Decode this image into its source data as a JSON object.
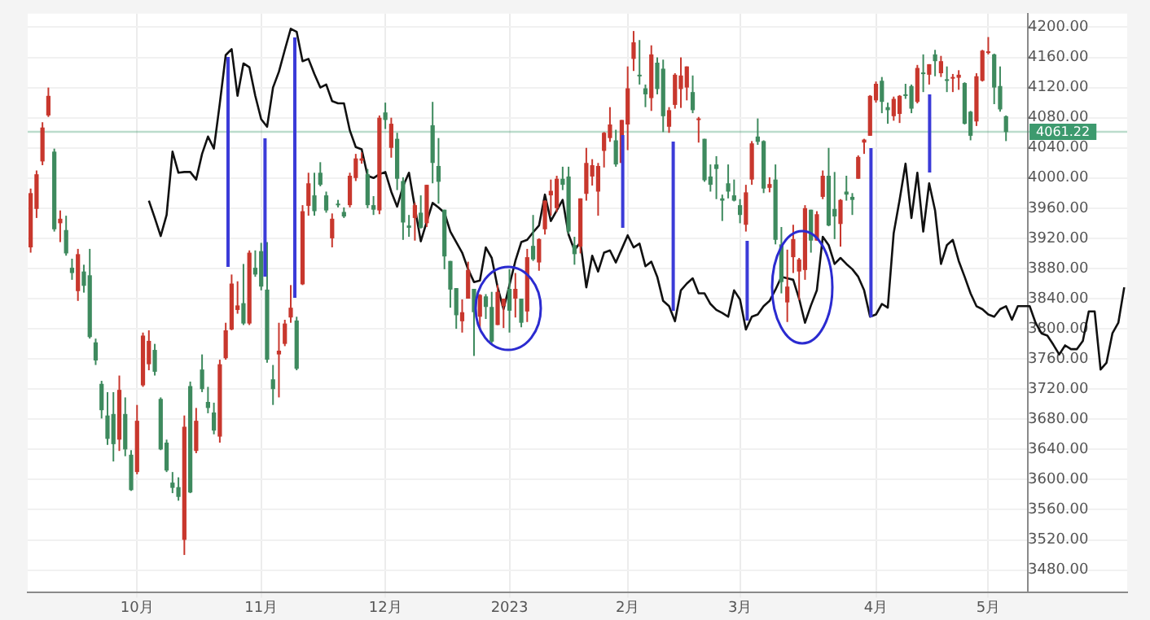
{
  "chart_data": {
    "type": "candlestick",
    "categories": [
      null,
      null,
      null,
      null,
      null,
      null,
      null,
      null,
      null,
      null,
      null,
      null,
      null,
      null,
      null,
      null,
      null,
      null,
      "10月",
      null,
      null,
      null,
      null,
      null,
      null,
      null,
      null,
      null,
      null,
      null,
      null,
      null,
      null,
      null,
      null,
      null,
      null,
      null,
      null,
      "11月",
      null,
      null,
      null,
      null,
      null,
      null,
      null,
      null,
      null,
      null,
      null,
      null,
      null,
      null,
      null,
      null,
      null,
      null,
      null,
      null,
      "12月",
      null,
      null,
      null,
      null,
      null,
      null,
      null,
      null,
      null,
      null,
      null,
      null,
      null,
      null,
      null,
      null,
      null,
      null,
      null,
      null,
      "2023",
      null,
      null,
      null,
      null,
      null,
      null,
      null,
      null,
      null,
      null,
      null,
      null,
      null,
      null,
      null,
      null,
      null,
      null,
      null,
      "2月",
      null,
      null,
      null,
      null,
      null,
      null,
      null,
      null,
      null,
      null,
      null,
      null,
      null,
      null,
      null,
      null,
      null,
      null,
      "3月",
      null,
      null,
      null,
      null,
      null,
      null,
      null,
      null,
      null,
      null,
      null,
      null,
      null,
      null,
      null,
      null,
      null,
      null,
      null,
      null,
      null,
      null,
      "4月",
      null,
      null,
      null,
      null,
      null,
      null,
      null,
      null,
      null,
      null,
      null,
      null,
      null,
      null,
      null,
      null,
      null,
      null,
      "5月",
      null,
      null,
      null,
      null,
      null,
      null,
      null,
      null,
      null,
      null,
      null,
      null,
      null,
      null,
      null,
      null,
      null,
      null,
      null,
      null,
      null,
      null,
      null
    ],
    "ohlc": [
      [
        3908,
        3986,
        3901,
        3980
      ],
      [
        3959,
        4010,
        3947,
        4005
      ],
      [
        4022,
        4074,
        4017,
        4067
      ],
      [
        4083,
        4120,
        4081,
        4109
      ],
      [
        4035,
        4039,
        3929,
        3932
      ],
      [
        3940,
        3957,
        3915,
        3946
      ],
      [
        3931,
        3950,
        3897,
        3900
      ],
      [
        3881,
        3893,
        3865,
        3874
      ],
      [
        3850,
        3906,
        3837,
        3899
      ],
      [
        3876,
        3885,
        3848,
        3857
      ],
      [
        3871,
        3906,
        3787,
        3789
      ],
      [
        3782,
        3787,
        3752,
        3758
      ],
      [
        3727,
        3731,
        3681,
        3692
      ],
      [
        3685,
        3716,
        3646,
        3654
      ],
      [
        3687,
        3716,
        3624,
        3647
      ],
      [
        3653,
        3738,
        3638,
        3719
      ],
      [
        3687,
        3709,
        3631,
        3640
      ],
      [
        3633,
        3639,
        3585,
        3586
      ],
      [
        3610,
        3699,
        3607,
        3678
      ],
      [
        3725,
        3795,
        3723,
        3791
      ],
      [
        3753,
        3798,
        3745,
        3784
      ],
      [
        3772,
        3780,
        3738,
        3743
      ],
      [
        3707,
        3709,
        3639,
        3640
      ],
      [
        3649,
        3653,
        3610,
        3612
      ],
      [
        3596,
        3610,
        3582,
        3589
      ],
      [
        3590,
        3603,
        3572,
        3577
      ],
      [
        3520,
        3685,
        3500,
        3670
      ],
      [
        3724,
        3730,
        3582,
        3583
      ],
      [
        3638,
        3695,
        3635,
        3678
      ],
      [
        3746,
        3766,
        3716,
        3720
      ],
      [
        3703,
        3723,
        3688,
        3695
      ],
      [
        3689,
        3702,
        3660,
        3665
      ],
      [
        3657,
        3759,
        3649,
        3753
      ],
      [
        3761,
        3808,
        3759,
        3798
      ],
      [
        3799,
        3872,
        3798,
        3860
      ],
      [
        3825,
        3863,
        3820,
        3831
      ],
      [
        3834,
        3886,
        3805,
        3807
      ],
      [
        3807,
        3904,
        3805,
        3901
      ],
      [
        3881,
        3904,
        3869,
        3872
      ],
      [
        3903,
        3914,
        3851,
        3856
      ],
      [
        3852,
        3915,
        3755,
        3759
      ],
      [
        3733,
        3752,
        3699,
        3720
      ],
      [
        3766,
        3808,
        3709,
        3771
      ],
      [
        3780,
        3812,
        3777,
        3807
      ],
      [
        3815,
        3858,
        3808,
        3828
      ],
      [
        3811,
        3816,
        3745,
        3747
      ],
      [
        3859,
        3964,
        3858,
        3956
      ],
      [
        3963,
        4007,
        3950,
        3993
      ],
      [
        3977,
        4007,
        3950,
        3956
      ],
      [
        4007,
        4021,
        3989,
        3991
      ],
      [
        3977,
        3982,
        3954,
        3957
      ],
      [
        3920,
        3953,
        3908,
        3946
      ],
      [
        3966,
        3971,
        3961,
        3965
      ],
      [
        3955,
        3961,
        3947,
        3949
      ],
      [
        3964,
        4007,
        3961,
        4003
      ],
      [
        4000,
        4032,
        3996,
        4026
      ],
      [
        4023,
        4034,
        4019,
        4026
      ],
      [
        4005,
        4012,
        3960,
        3964
      ],
      [
        3964,
        3976,
        3951,
        3958
      ],
      [
        3957,
        4083,
        3952,
        4080
      ],
      [
        4087,
        4100,
        4065,
        4077
      ],
      [
        4040,
        4080,
        4027,
        4072
      ],
      [
        4052,
        4060,
        3984,
        3999
      ],
      [
        3996,
        4001,
        3918,
        3941
      ],
      [
        3937,
        3951,
        3922,
        3934
      ],
      [
        3947,
        3967,
        3917,
        3964
      ],
      [
        3954,
        3977,
        3933,
        3934
      ],
      [
        3940,
        3991,
        3935,
        3991
      ],
      [
        4070,
        4101,
        3993,
        4020
      ],
      [
        4016,
        4053,
        3966,
        3995
      ],
      [
        3958,
        3958,
        3879,
        3896
      ],
      [
        3890,
        3890,
        3828,
        3852
      ],
      [
        3854,
        3854,
        3800,
        3818
      ],
      [
        3810,
        3839,
        3795,
        3822
      ],
      [
        3840,
        3889,
        3840,
        3878
      ],
      [
        3853,
        3853,
        3764,
        3822
      ],
      [
        3816,
        3846,
        3800,
        3845
      ],
      [
        3843,
        3846,
        3813,
        3829
      ],
      [
        3829,
        3849,
        3781,
        3783
      ],
      [
        3805,
        3858,
        3805,
        3849
      ],
      [
        3830,
        3840,
        3801,
        3840
      ],
      [
        3853,
        3879,
        3795,
        3824
      ],
      [
        3840,
        3874,
        3815,
        3853
      ],
      [
        3840,
        3840,
        3802,
        3808
      ],
      [
        3823,
        3906,
        3809,
        3895
      ],
      [
        3910,
        3951,
        3890,
        3892
      ],
      [
        3888,
        3920,
        3877,
        3919
      ],
      [
        3932,
        3970,
        3925,
        3970
      ],
      [
        3977,
        3998,
        3950,
        3983
      ],
      [
        3960,
        4003,
        3955,
        3999
      ],
      [
        3999,
        4015,
        3984,
        3991
      ],
      [
        4002,
        4015,
        3926,
        3929
      ],
      [
        3911,
        3922,
        3885,
        3899
      ],
      [
        3909,
        3973,
        3900,
        3973
      ],
      [
        3979,
        4040,
        3970,
        4020
      ],
      [
        4002,
        4025,
        3990,
        4017
      ],
      [
        3982,
        4020,
        3950,
        4016
      ],
      [
        4036,
        4061,
        4014,
        4060
      ],
      [
        4053,
        4094,
        4048,
        4071
      ],
      [
        4050,
        4064,
        4015,
        4018
      ],
      [
        4020,
        4077,
        4020,
        4077
      ],
      [
        4071,
        4148,
        4037,
        4119
      ],
      [
        4158,
        4195,
        4142,
        4180
      ],
      [
        4137,
        4183,
        4124,
        4136
      ],
      [
        4119,
        4124,
        4094,
        4111
      ],
      [
        4106,
        4176,
        4089,
        4164
      ],
      [
        4153,
        4160,
        4111,
        4118
      ],
      [
        4145,
        4157,
        4061,
        4082
      ],
      [
        4068,
        4094,
        4060,
        4090
      ],
      [
        4097,
        4139,
        4092,
        4137
      ],
      [
        4118,
        4160,
        4093,
        4136
      ],
      [
        4120,
        4148,
        4103,
        4148
      ],
      [
        4114,
        4136,
        4086,
        4090
      ],
      [
        4077,
        4081,
        4047,
        4079
      ],
      [
        4052,
        4052,
        3995,
        3997
      ],
      [
        4002,
        4018,
        3982,
        3991
      ],
      [
        4018,
        4029,
        3972,
        4012
      ],
      [
        3973,
        3978,
        3943,
        3970
      ],
      [
        3993,
        4018,
        3973,
        3982
      ],
      [
        3977,
        3998,
        3969,
        3970
      ],
      [
        3964,
        3972,
        3940,
        3951
      ],
      [
        3938,
        3991,
        3929,
        3981
      ],
      [
        3998,
        4049,
        3991,
        4046
      ],
      [
        4055,
        4079,
        4044,
        4048
      ],
      [
        4049,
        4050,
        3980,
        3986
      ],
      [
        3987,
        4001,
        3981,
        3992
      ],
      [
        3998,
        4018,
        3912,
        3918
      ],
      [
        3912,
        3935,
        3847,
        3862
      ],
      [
        3835,
        3905,
        3809,
        3856
      ],
      [
        3895,
        3938,
        3874,
        3919
      ],
      [
        3876,
        3894,
        3838,
        3892
      ],
      [
        3878,
        3964,
        3865,
        3960
      ],
      [
        3958,
        3958,
        3901,
        3917
      ],
      [
        3917,
        3956,
        3917,
        3952
      ],
      [
        3975,
        4010,
        3972,
        4003
      ],
      [
        4003,
        4040,
        3936,
        3937
      ],
      [
        3959,
        4008,
        3919,
        3949
      ],
      [
        3939,
        3972,
        3909,
        3971
      ],
      [
        3982,
        4003,
        3970,
        3978
      ],
      [
        3975,
        3980,
        3951,
        3971
      ],
      [
        3999,
        4030,
        3999,
        4028
      ],
      [
        4047,
        4052,
        4032,
        4051
      ],
      [
        4056,
        4110,
        4056,
        4109
      ],
      [
        4103,
        4128,
        4100,
        4125
      ],
      [
        4129,
        4134,
        4086,
        4101
      ],
      [
        4094,
        4100,
        4072,
        4090
      ],
      [
        4082,
        4108,
        4076,
        4105
      ],
      [
        4085,
        4110,
        4073,
        4109
      ],
      [
        4111,
        4125,
        4105,
        4109
      ],
      [
        4122,
        4124,
        4086,
        4092
      ],
      [
        4101,
        4150,
        4099,
        4146
      ],
      [
        4140,
        4164,
        4114,
        4138
      ],
      [
        4137,
        4151,
        4124,
        4151
      ],
      [
        4164,
        4170,
        4135,
        4155
      ],
      [
        4139,
        4162,
        4134,
        4155
      ],
      [
        4131,
        4148,
        4114,
        4130
      ],
      [
        4132,
        4138,
        4114,
        4134
      ],
      [
        4133,
        4143,
        4117,
        4137
      ],
      [
        4126,
        4127,
        4071,
        4072
      ],
      [
        4088,
        4089,
        4050,
        4056
      ],
      [
        4075,
        4139,
        4069,
        4135
      ],
      [
        4129,
        4170,
        4128,
        4169
      ],
      [
        4166,
        4187,
        4164,
        4168
      ],
      [
        4164,
        4165,
        4098,
        4120
      ],
      [
        4122,
        4148,
        4088,
        4091
      ],
      [
        4082,
        4083,
        4049,
        4061
      ],
      null,
      null,
      null,
      null,
      null,
      null,
      null,
      null,
      null,
      null,
      null,
      null,
      null,
      null,
      null,
      null,
      null,
      null,
      null,
      null
    ],
    "colors": [
      "#c8372d",
      "#c8372d",
      "#c8372d",
      "#c8372d",
      "#3e8a5e",
      "#c8372d",
      "#3e8a5e",
      "#3e8a5e",
      "#c8372d",
      "#3e8a5e",
      "#3e8a5e",
      "#3e8a5e",
      "#3e8a5e",
      "#3e8a5e",
      "#3e8a5e",
      "#c8372d",
      "#3e8a5e",
      "#3e8a5e",
      "#c8372d",
      "#c8372d",
      "#c8372d",
      "#3e8a5e",
      "#3e8a5e",
      "#3e8a5e",
      "#3e8a5e",
      "#3e8a5e",
      "#c8372d",
      "#3e8a5e",
      "#c8372d",
      "#3e8a5e",
      "#3e8a5e",
      "#3e8a5e",
      "#c8372d",
      "#c8372d",
      "#c8372d",
      "#c8372d",
      "#3e8a5e",
      "#c8372d",
      "#3e8a5e",
      "#3e8a5e",
      "#3e8a5e",
      "#3e8a5e",
      "#c8372d",
      "#c8372d",
      "#c8372d",
      "#3e8a5e",
      "#c8372d",
      "#c8372d",
      "#3e8a5e",
      "#3e8a5e",
      "#3e8a5e",
      "#c8372d",
      "#3e8a5e",
      "#3e8a5e",
      "#c8372d",
      "#c8372d",
      "#c8372d",
      "#3e8a5e",
      "#3e8a5e",
      "#c8372d",
      "#3e8a5e",
      "#c8372d",
      "#3e8a5e",
      "#3e8a5e",
      "#3e8a5e",
      "#c8372d",
      "#3e8a5e",
      "#c8372d",
      "#3e8a5e",
      "#3e8a5e",
      "#3e8a5e",
      "#3e8a5e",
      "#3e8a5e",
      "#c8372d",
      "#c8372d",
      "#3e8a5e",
      "#c8372d",
      "#3e8a5e",
      "#3e8a5e",
      "#c8372d",
      "#c8372d",
      "#3e8a5e",
      "#c8372d",
      "#3e8a5e",
      "#c8372d",
      "#3e8a5e",
      "#c8372d",
      "#c8372d",
      "#c8372d",
      "#c8372d",
      "#3e8a5e",
      "#3e8a5e",
      "#3e8a5e",
      "#c8372d",
      "#c8372d",
      "#c8372d",
      "#c8372d",
      "#c8372d",
      "#c8372d",
      "#3e8a5e",
      "#c8372d",
      "#c8372d",
      "#c8372d",
      "#3e8a5e",
      "#3e8a5e",
      "#c8372d",
      "#3e8a5e",
      "#3e8a5e",
      "#c8372d",
      "#c8372d",
      "#c8372d",
      "#c8372d",
      "#3e8a5e",
      "#c8372d",
      "#3e8a5e",
      "#3e8a5e",
      "#3e8a5e",
      "#3e8a5e",
      "#3e8a5e",
      "#3e8a5e",
      "#3e8a5e",
      "#c8372d",
      "#c8372d",
      "#3e8a5e",
      "#3e8a5e",
      "#c8372d",
      "#3e8a5e",
      "#3e8a5e",
      "#c8372d",
      "#c8372d",
      "#c8372d",
      "#c8372d",
      "#3e8a5e",
      "#c8372d",
      "#c8372d",
      "#3e8a5e",
      "#3e8a5e",
      "#c8372d",
      "#3e8a5e",
      "#3e8a5e",
      "#c8372d",
      "#c8372d",
      "#c8372d",
      "#c8372d",
      "#3e8a5e",
      "#3e8a5e",
      "#c8372d",
      "#c8372d",
      "#3e8a5e",
      "#3e8a5e",
      "#c8372d",
      "#3e8a5e",
      "#c8372d",
      "#3e8a5e",
      "#c8372d",
      "#3e8a5e",
      "#c8372d",
      "#c8372d",
      "#3e8a5e",
      "#3e8a5e",
      "#c8372d",
      "#c8372d",
      "#c8372d",
      "#3e8a5e",
      "#3e8a5e",
      "#3e8a5e",
      null,
      null,
      null,
      null,
      null,
      null,
      null,
      null,
      null,
      null,
      null,
      null,
      null,
      null,
      null,
      null,
      null,
      null,
      null,
      null
    ],
    "series": [
      {
        "type": "line",
        "color": "#111111",
        "values": [
          null,
          null,
          null,
          null,
          null,
          null,
          null,
          null,
          null,
          null,
          null,
          null,
          null,
          null,
          null,
          null,
          null,
          null,
          null,
          null,
          3970,
          3947,
          3923,
          3951,
          4035,
          4007,
          4008,
          4008,
          3998,
          4032,
          4055,
          4039,
          4099,
          4163,
          4171,
          4109,
          4152,
          4147,
          4109,
          4078,
          4068,
          4120,
          4141,
          4170,
          4198,
          4194,
          4155,
          4158,
          4138,
          4120,
          4124,
          4102,
          4099,
          4099,
          4063,
          4041,
          4038,
          4003,
          4000,
          4005,
          4008,
          3982,
          3962,
          3989,
          4007,
          3961,
          3916,
          3942,
          3967,
          3961,
          3954,
          3929,
          3915,
          3901,
          3879,
          3862,
          3864,
          3908,
          3894,
          3855,
          3826,
          3858,
          3890,
          3915,
          3918,
          3928,
          3937,
          3978,
          3943,
          3957,
          3971,
          3925,
          3904,
          3915,
          3855,
          3897,
          3876,
          3901,
          3904,
          3888,
          3906,
          3924,
          3908,
          3913,
          3883,
          3889,
          3869,
          3837,
          3830,
          3810,
          3851,
          3860,
          3867,
          3847,
          3847,
          3833,
          3825,
          3821,
          3816,
          3851,
          3839,
          3799,
          3816,
          3819,
          3830,
          3837,
          3852,
          3869,
          3867,
          3865,
          3840,
          3808,
          3831,
          3851,
          3922,
          3911,
          3886,
          3894,
          3886,
          3879,
          3869,
          3851,
          3816,
          3819,
          3833,
          3828,
          3927,
          3971,
          4019,
          3947,
          4007,
          3929,
          3993,
          3957,
          3886,
          3911,
          3918,
          3890,
          3869,
          3847,
          3830,
          3826,
          3819,
          3816,
          3826,
          3830,
          3812,
          3830,
          3830,
          3830,
          3808,
          3794,
          3791,
          3779,
          3766,
          3778,
          3773,
          3773,
          3784,
          3823,
          3823,
          3746,
          3755,
          3794,
          3808,
          3855
        ]
      }
    ],
    "ylim": [
      3450,
      4218
    ],
    "yticks": [
      {
        "value": 3480,
        "label": "3480.00"
      },
      {
        "value": 3520,
        "label": "3520.00"
      },
      {
        "value": 3560,
        "label": "3560.00"
      },
      {
        "value": 3600,
        "label": "3600.00"
      },
      {
        "value": 3640,
        "label": "3640.00"
      },
      {
        "value": 3680,
        "label": "3680.00"
      },
      {
        "value": 3720,
        "label": "3720.00"
      },
      {
        "value": 3760,
        "label": "3760.00"
      },
      {
        "value": 3800,
        "label": "3800.00"
      },
      {
        "value": 3840,
        "label": "3840.00"
      },
      {
        "value": 3880,
        "label": "3880.00"
      },
      {
        "value": 3920,
        "label": "3920.00"
      },
      {
        "value": 3960,
        "label": "3960.00"
      },
      {
        "value": 4000,
        "label": "4000.00"
      },
      {
        "value": 4040,
        "label": "4040.00"
      },
      {
        "value": 4080,
        "label": "4080.00"
      },
      {
        "value": 4120,
        "label": "4120.00"
      },
      {
        "value": 4160,
        "label": "4160.00"
      },
      {
        "value": 4200,
        "label": "4200.00"
      }
    ],
    "grid": true,
    "ref_lines": [
      {
        "axis": "y",
        "value": 4061.22,
        "label": "4061.22",
        "color": "#3d9a6e"
      }
    ]
  }
}
